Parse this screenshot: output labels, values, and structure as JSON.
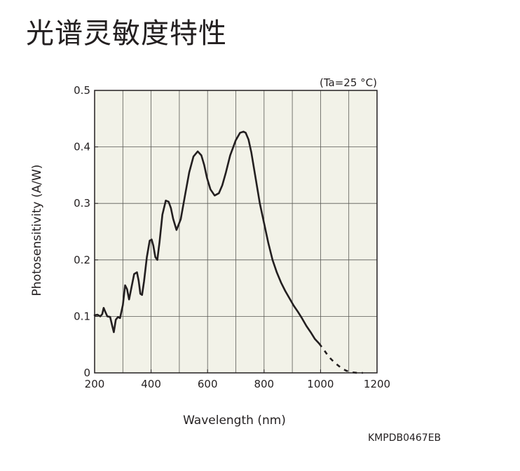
{
  "page_title": "光谱灵敏度特性",
  "figure_code": "KMPDB0467EB",
  "chart_data": {
    "type": "line",
    "title": "",
    "condition": "(Ta=25 °C)",
    "xlabel": "Wavelength (nm)",
    "ylabel": "Photosensitivity (A/W)",
    "xlim": [
      200,
      1200
    ],
    "ylim": [
      0,
      0.5
    ],
    "xticks": [
      200,
      400,
      600,
      800,
      1000,
      1200
    ],
    "xtick_labels": [
      "200",
      "400",
      "600",
      "800",
      "1000",
      "1200"
    ],
    "yticks": [
      0,
      0.1,
      0.2,
      0.3,
      0.4,
      0.5
    ],
    "ytick_labels": [
      "0",
      "0.1",
      "0.2",
      "0.3",
      "0.4",
      "0.5"
    ],
    "grid": true,
    "x_grid_step": 100,
    "y_grid_step": 0.1,
    "plot_background": "#f2f2e8",
    "line_color": "#231f20",
    "series": [
      {
        "style": "solid",
        "x": [
          200,
          210,
          220,
          227,
          232,
          237,
          245,
          255,
          262,
          268,
          275,
          283,
          290,
          300,
          308,
          315,
          322,
          330,
          340,
          350,
          356,
          362,
          368,
          375,
          385,
          395,
          402,
          408,
          415,
          422,
          430,
          440,
          452,
          462,
          470,
          478,
          490,
          505,
          520,
          535,
          550,
          565,
          578,
          588,
          598,
          610,
          625,
          640,
          652,
          665,
          680,
          700,
          715,
          727,
          735,
          745,
          755,
          770,
          785,
          800,
          815,
          830,
          845,
          860,
          875,
          890,
          905,
          920,
          935,
          950,
          965,
          980,
          995
        ],
        "y": [
          0.102,
          0.103,
          0.1,
          0.104,
          0.115,
          0.109,
          0.1,
          0.099,
          0.084,
          0.072,
          0.094,
          0.099,
          0.097,
          0.12,
          0.155,
          0.148,
          0.13,
          0.15,
          0.175,
          0.178,
          0.163,
          0.14,
          0.138,
          0.162,
          0.205,
          0.234,
          0.236,
          0.225,
          0.205,
          0.2,
          0.232,
          0.28,
          0.305,
          0.303,
          0.292,
          0.273,
          0.253,
          0.272,
          0.314,
          0.355,
          0.383,
          0.392,
          0.385,
          0.368,
          0.345,
          0.325,
          0.314,
          0.318,
          0.332,
          0.355,
          0.385,
          0.412,
          0.425,
          0.427,
          0.425,
          0.413,
          0.39,
          0.345,
          0.3,
          0.265,
          0.23,
          0.2,
          0.178,
          0.16,
          0.145,
          0.132,
          0.119,
          0.108,
          0.096,
          0.083,
          0.072,
          0.06,
          0.052
        ]
      },
      {
        "style": "dashed",
        "x": [
          995,
          1010,
          1030,
          1050,
          1070,
          1090,
          1110,
          1130,
          1150
        ],
        "y": [
          0.052,
          0.042,
          0.028,
          0.018,
          0.01,
          0.004,
          0.001,
          0.0,
          0.0
        ]
      }
    ]
  }
}
